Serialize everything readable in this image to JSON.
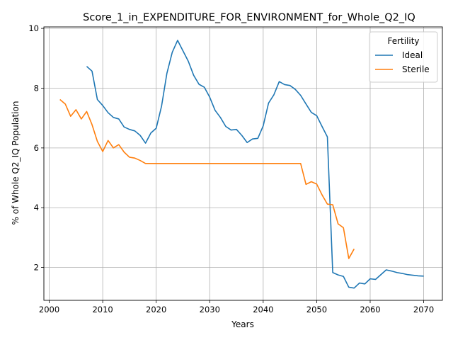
{
  "chart_data": {
    "type": "line",
    "title": "Score_1_in_EXPENDITURE_FOR_ENVIRONMENT_for_Whole_Q2_IQ",
    "xlabel": "Years",
    "ylabel": "% of Whole Q2_IQ Population",
    "xlim": [
      1999,
      2073.5
    ],
    "ylim": [
      0.9,
      10.05
    ],
    "xticks": [
      2000,
      2010,
      2020,
      2030,
      2040,
      2050,
      2060,
      2070
    ],
    "yticks": [
      2,
      4,
      6,
      8,
      10
    ],
    "grid": true,
    "legend": {
      "title": "Fertility",
      "position": "top-right"
    },
    "series": [
      {
        "name": "Ideal",
        "color": "#1f77b4",
        "x": [
          2007,
          2008,
          2009,
          2010,
          2011,
          2012,
          2013,
          2014,
          2015,
          2016,
          2017,
          2018,
          2019,
          2020,
          2021,
          2022,
          2023,
          2024,
          2025,
          2026,
          2027,
          2028,
          2029,
          2030,
          2031,
          2032,
          2033,
          2034,
          2035,
          2036,
          2037,
          2038,
          2039,
          2040,
          2041,
          2042,
          2043,
          2044,
          2045,
          2046,
          2047,
          2048,
          2049,
          2050,
          2051,
          2052,
          2053,
          2054,
          2055,
          2056,
          2057,
          2058,
          2059,
          2060,
          2061,
          2062,
          2063,
          2064,
          2065,
          2066,
          2067,
          2068,
          2069,
          2070
        ],
        "values": [
          8.73,
          8.57,
          7.62,
          7.42,
          7.18,
          7.02,
          6.97,
          6.7,
          6.62,
          6.57,
          6.42,
          6.16,
          6.5,
          6.66,
          7.4,
          8.5,
          9.2,
          9.6,
          9.25,
          8.9,
          8.43,
          8.13,
          8.03,
          7.7,
          7.26,
          7.02,
          6.72,
          6.6,
          6.62,
          6.42,
          6.18,
          6.3,
          6.32,
          6.74,
          7.5,
          7.78,
          8.22,
          8.12,
          8.09,
          7.96,
          7.76,
          7.47,
          7.19,
          7.08,
          6.72,
          6.37,
          1.83,
          1.75,
          1.7,
          1.34,
          1.31,
          1.48,
          1.45,
          1.62,
          1.6,
          1.76,
          1.92,
          1.88,
          1.83,
          1.8,
          1.76,
          1.74,
          1.72,
          1.71
        ]
      },
      {
        "name": "Sterile",
        "color": "#ff7f0e",
        "x": [
          2002,
          2003,
          2004,
          2005,
          2006,
          2007,
          2008,
          2009,
          2010,
          2011,
          2012,
          2013,
          2014,
          2015,
          2016,
          2017,
          2018,
          2019,
          2020,
          2021,
          2022,
          2023,
          2024,
          2025,
          2026,
          2027,
          2028,
          2029,
          2030,
          2031,
          2032,
          2033,
          2034,
          2035,
          2036,
          2037,
          2038,
          2039,
          2040,
          2041,
          2042,
          2043,
          2044,
          2045,
          2046,
          2047,
          2048,
          2049,
          2050,
          2051,
          2052,
          2053,
          2054,
          2055,
          2056,
          2057
        ],
        "values": [
          7.62,
          7.47,
          7.06,
          7.28,
          6.97,
          7.22,
          6.78,
          6.22,
          5.88,
          6.25,
          6.0,
          6.11,
          5.86,
          5.69,
          5.66,
          5.58,
          5.48,
          5.48,
          5.48,
          5.48,
          5.48,
          5.48,
          5.48,
          5.48,
          5.48,
          5.48,
          5.48,
          5.48,
          5.48,
          5.48,
          5.48,
          5.48,
          5.48,
          5.48,
          5.48,
          5.48,
          5.48,
          5.48,
          5.48,
          5.48,
          5.48,
          5.48,
          5.48,
          5.48,
          5.48,
          5.48,
          4.78,
          4.87,
          4.79,
          4.43,
          4.12,
          4.1,
          3.46,
          3.33,
          2.3,
          2.62
        ]
      }
    ]
  }
}
